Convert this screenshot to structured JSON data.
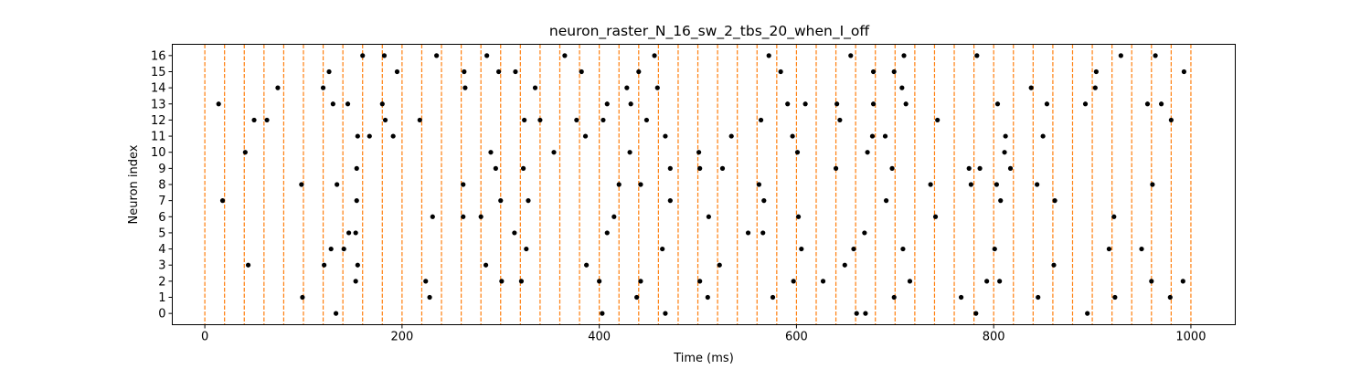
{
  "chart_data": {
    "type": "scatter",
    "title": "neuron_raster_N_16_sw_2_tbs_20_when_I_off",
    "xlabel": "Time (ms)",
    "ylabel": "Neuron index",
    "xlim": [
      -33,
      1045
    ],
    "ylim": [
      -0.7,
      16.7
    ],
    "x_ticks": [
      0,
      200,
      400,
      600,
      800,
      1000
    ],
    "x_tick_labels": [
      "0",
      "200",
      "400",
      "600",
      "800",
      "1000"
    ],
    "y_ticks": [
      0,
      1,
      2,
      3,
      4,
      5,
      6,
      7,
      8,
      9,
      10,
      11,
      12,
      13,
      14,
      15,
      16
    ],
    "y_tick_labels": [
      "0",
      "1",
      "2",
      "3",
      "4",
      "5",
      "6",
      "7",
      "8",
      "9",
      "10",
      "11",
      "12",
      "13",
      "14",
      "15",
      "16"
    ],
    "grid": false,
    "colors": {
      "spike": "#000000",
      "boundary": "#ff7f0e"
    },
    "time_bin_boundaries": [
      0,
      20,
      40,
      60,
      80,
      100,
      120,
      140,
      160,
      180,
      200,
      220,
      240,
      260,
      280,
      300,
      320,
      340,
      360,
      380,
      400,
      420,
      440,
      460,
      480,
      500,
      520,
      540,
      560,
      580,
      600,
      620,
      640,
      660,
      680,
      700,
      720,
      740,
      760,
      780,
      800,
      820,
      840,
      860,
      880,
      900,
      920,
      940,
      960,
      980,
      1000
    ],
    "spikes": [
      {
        "neuron": 0,
        "times": [
          133,
          403,
          467,
          661,
          670,
          782,
          895
        ]
      },
      {
        "neuron": 1,
        "times": [
          99,
          228,
          438,
          510,
          576,
          699,
          767,
          845,
          923,
          979
        ]
      },
      {
        "neuron": 2,
        "times": [
          153,
          224,
          301,
          321,
          400,
          442,
          502,
          597,
          627,
          715,
          793,
          806,
          960,
          992
        ]
      },
      {
        "neuron": 3,
        "times": [
          44,
          121,
          155,
          285,
          387,
          522,
          649,
          861
        ]
      },
      {
        "neuron": 4,
        "times": [
          128,
          141,
          326,
          464,
          605,
          658,
          708,
          801,
          917,
          950
        ]
      },
      {
        "neuron": 5,
        "times": [
          146,
          153,
          314,
          408,
          551,
          566,
          669
        ]
      },
      {
        "neuron": 6,
        "times": [
          231,
          262,
          280,
          415,
          511,
          602,
          741,
          922
        ]
      },
      {
        "neuron": 7,
        "times": [
          18,
          154,
          300,
          328,
          472,
          567,
          691,
          807,
          862
        ]
      },
      {
        "neuron": 8,
        "times": [
          98,
          134,
          262,
          420,
          442,
          562,
          736,
          777,
          803,
          844,
          961
        ]
      },
      {
        "neuron": 9,
        "times": [
          154,
          295,
          323,
          472,
          502,
          525,
          640,
          697,
          775,
          786,
          817
        ]
      },
      {
        "neuron": 10,
        "times": [
          41,
          290,
          354,
          431,
          501,
          601,
          672,
          811
        ]
      },
      {
        "neuron": 11,
        "times": [
          155,
          167,
          191,
          386,
          467,
          534,
          596,
          677,
          690,
          812,
          850
        ]
      },
      {
        "neuron": 12,
        "times": [
          50,
          63,
          183,
          218,
          324,
          340,
          377,
          404,
          448,
          564,
          644,
          743,
          980
        ]
      },
      {
        "neuron": 13,
        "times": [
          14,
          130,
          145,
          180,
          408,
          432,
          591,
          609,
          641,
          678,
          711,
          804,
          854,
          893,
          956,
          970
        ]
      },
      {
        "neuron": 14,
        "times": [
          74,
          120,
          264,
          335,
          428,
          459,
          707,
          838,
          903
        ]
      },
      {
        "neuron": 15,
        "times": [
          126,
          195,
          263,
          298,
          315,
          382,
          440,
          584,
          678,
          699,
          904,
          993
        ]
      },
      {
        "neuron": 16,
        "times": [
          160,
          182,
          235,
          286,
          365,
          456,
          572,
          655,
          709,
          783,
          929,
          964
        ]
      }
    ]
  }
}
